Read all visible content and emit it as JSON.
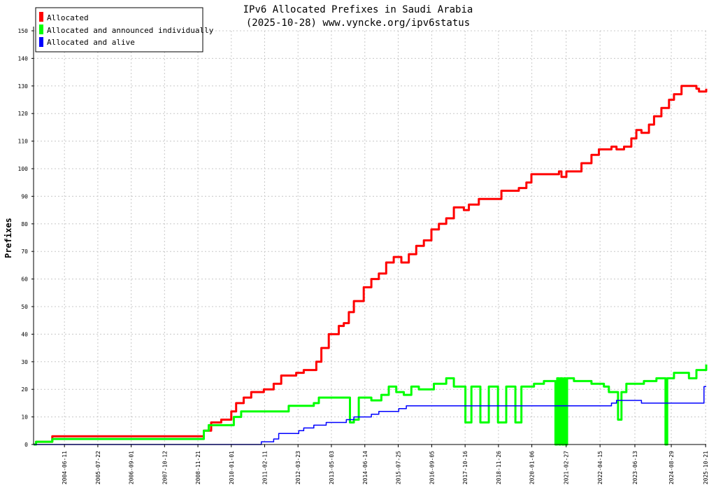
{
  "chart_data": {
    "type": "line",
    "title": "IPv6 Allocated Prefixes in Saudi Arabia",
    "subtitle": "(2025-10-28) www.vyncke.org/ipv6status",
    "ylabel": "Prefixes",
    "xlabel": "",
    "ylim": [
      0,
      150
    ],
    "yticks": [
      0,
      10,
      20,
      30,
      40,
      50,
      60,
      70,
      80,
      90,
      100,
      110,
      120,
      130,
      140,
      150
    ],
    "xlim": [
      "2003-06-01",
      "2025-10-28"
    ],
    "xticks": [
      "2004-06-11",
      "2005-07-22",
      "2006-09-01",
      "2007-10-12",
      "2008-11-21",
      "2010-01-01",
      "2011-02-11",
      "2012-03-23",
      "2013-05-03",
      "2014-06-14",
      "2015-07-25",
      "2016-09-05",
      "2017-10-16",
      "2018-11-26",
      "2020-01-06",
      "2021-02-27",
      "2022-04-15",
      "2023-06-13",
      "2024-08-29",
      "2025-10-21"
    ],
    "grid": true,
    "legend_position": "top-left",
    "series": [
      {
        "name": "Allocated",
        "color": "#ff0000",
        "points": [
          [
            "2003-06-01",
            0
          ],
          [
            "2003-07-01",
            1
          ],
          [
            "2004-01-15",
            3
          ],
          [
            "2008-12-15",
            3
          ],
          [
            "2009-02-01",
            5
          ],
          [
            "2009-05-01",
            8
          ],
          [
            "2009-09-01",
            9
          ],
          [
            "2010-01-01",
            12
          ],
          [
            "2010-03-01",
            15
          ],
          [
            "2010-06-01",
            17
          ],
          [
            "2010-09-01",
            19
          ],
          [
            "2011-02-01",
            20
          ],
          [
            "2011-06-01",
            22
          ],
          [
            "2011-09-01",
            25
          ],
          [
            "2012-03-01",
            26
          ],
          [
            "2012-06-01",
            27
          ],
          [
            "2012-11-01",
            30
          ],
          [
            "2013-01-01",
            35
          ],
          [
            "2013-04-01",
            40
          ],
          [
            "2013-08-01",
            43
          ],
          [
            "2013-10-01",
            44
          ],
          [
            "2013-12-01",
            48
          ],
          [
            "2014-02-01",
            52
          ],
          [
            "2014-06-01",
            57
          ],
          [
            "2014-09-01",
            60
          ],
          [
            "2014-12-01",
            62
          ],
          [
            "2015-03-01",
            66
          ],
          [
            "2015-06-01",
            68
          ],
          [
            "2015-09-01",
            66
          ],
          [
            "2015-12-01",
            69
          ],
          [
            "2016-03-01",
            72
          ],
          [
            "2016-06-01",
            74
          ],
          [
            "2016-09-01",
            78
          ],
          [
            "2016-12-01",
            80
          ],
          [
            "2017-03-01",
            82
          ],
          [
            "2017-06-01",
            86
          ],
          [
            "2017-10-01",
            85
          ],
          [
            "2017-12-01",
            87
          ],
          [
            "2018-04-01",
            89
          ],
          [
            "2018-11-01",
            89
          ],
          [
            "2019-01-01",
            92
          ],
          [
            "2019-08-01",
            93
          ],
          [
            "2019-11-01",
            95
          ],
          [
            "2020-01-01",
            98
          ],
          [
            "2020-12-01",
            99
          ],
          [
            "2021-01-01",
            97
          ],
          [
            "2021-03-01",
            99
          ],
          [
            "2021-09-01",
            102
          ],
          [
            "2022-01-01",
            105
          ],
          [
            "2022-04-01",
            107
          ],
          [
            "2022-09-01",
            108
          ],
          [
            "2022-11-01",
            107
          ],
          [
            "2023-02-01",
            108
          ],
          [
            "2023-05-01",
            111
          ],
          [
            "2023-07-01",
            114
          ],
          [
            "2023-09-01",
            113
          ],
          [
            "2023-12-01",
            116
          ],
          [
            "2024-02-01",
            119
          ],
          [
            "2024-05-01",
            122
          ],
          [
            "2024-08-01",
            125
          ],
          [
            "2024-10-01",
            127
          ],
          [
            "2025-01-01",
            130
          ],
          [
            "2025-07-01",
            129
          ],
          [
            "2025-08-01",
            128
          ],
          [
            "2025-10-28",
            129
          ]
        ]
      },
      {
        "name": "Allocated and announced individually",
        "color": "#00ff00",
        "points": [
          [
            "2003-06-01",
            0
          ],
          [
            "2003-07-01",
            1
          ],
          [
            "2004-01-15",
            2
          ],
          [
            "2008-12-15",
            2
          ],
          [
            "2009-02-01",
            5
          ],
          [
            "2009-04-01",
            7
          ],
          [
            "2009-12-01",
            7
          ],
          [
            "2010-02-01",
            10
          ],
          [
            "2010-05-01",
            12
          ],
          [
            "2011-10-01",
            12
          ],
          [
            "2011-12-01",
            14
          ],
          [
            "2012-10-01",
            15
          ],
          [
            "2012-12-01",
            17
          ],
          [
            "2013-12-01",
            17
          ],
          [
            "2013-12-15",
            8
          ],
          [
            "2014-02-01",
            9
          ],
          [
            "2014-04-01",
            17
          ],
          [
            "2014-09-01",
            16
          ],
          [
            "2015-01-01",
            18
          ],
          [
            "2015-04-01",
            21
          ],
          [
            "2015-07-01",
            19
          ],
          [
            "2015-10-01",
            18
          ],
          [
            "2016-01-01",
            21
          ],
          [
            "2016-04-01",
            20
          ],
          [
            "2016-10-01",
            22
          ],
          [
            "2017-03-01",
            24
          ],
          [
            "2017-06-01",
            21
          ],
          [
            "2017-10-01",
            21
          ],
          [
            "2017-10-20",
            8
          ],
          [
            "2018-01-01",
            21
          ],
          [
            "2018-04-01",
            21
          ],
          [
            "2018-04-20",
            8
          ],
          [
            "2018-08-01",
            21
          ],
          [
            "2018-11-01",
            21
          ],
          [
            "2018-11-20",
            8
          ],
          [
            "2019-03-01",
            21
          ],
          [
            "2019-06-01",
            21
          ],
          [
            "2019-06-20",
            8
          ],
          [
            "2019-09-01",
            21
          ],
          [
            "2020-01-01",
            21
          ],
          [
            "2020-02-01",
            22
          ],
          [
            "2020-06-01",
            23
          ],
          [
            "2020-10-01",
            23
          ],
          [
            "2020-10-20",
            0
          ],
          [
            "2020-11-10",
            24
          ],
          [
            "2020-12-01",
            0
          ],
          [
            "2020-12-20",
            24
          ],
          [
            "2021-01-10",
            0
          ],
          [
            "2021-02-01",
            24
          ],
          [
            "2021-02-20",
            0
          ],
          [
            "2021-03-10",
            24
          ],
          [
            "2021-06-01",
            23
          ],
          [
            "2022-01-01",
            22
          ],
          [
            "2022-06-01",
            21
          ],
          [
            "2022-08-01",
            19
          ],
          [
            "2022-11-01",
            19
          ],
          [
            "2022-11-20",
            9
          ],
          [
            "2023-01-01",
            19
          ],
          [
            "2023-03-01",
            22
          ],
          [
            "2023-07-01",
            22
          ],
          [
            "2023-10-01",
            23
          ],
          [
            "2024-03-01",
            24
          ],
          [
            "2024-06-01",
            24
          ],
          [
            "2024-06-20",
            0
          ],
          [
            "2024-07-10",
            24
          ],
          [
            "2024-10-01",
            26
          ],
          [
            "2025-04-01",
            24
          ],
          [
            "2025-07-01",
            27
          ],
          [
            "2025-10-28",
            29
          ]
        ]
      },
      {
        "name": "Allocated and alive",
        "color": "#0000ff",
        "points": [
          [
            "2003-06-01",
            0
          ],
          [
            "2010-12-01",
            0
          ],
          [
            "2011-01-01",
            1
          ],
          [
            "2011-06-01",
            2
          ],
          [
            "2011-08-01",
            4
          ],
          [
            "2012-04-01",
            5
          ],
          [
            "2012-06-01",
            6
          ],
          [
            "2012-10-01",
            7
          ],
          [
            "2013-03-01",
            8
          ],
          [
            "2013-11-01",
            9
          ],
          [
            "2014-02-01",
            10
          ],
          [
            "2014-09-01",
            11
          ],
          [
            "2014-12-01",
            12
          ],
          [
            "2015-08-01",
            13
          ],
          [
            "2015-11-01",
            14
          ],
          [
            "2021-01-01",
            14
          ],
          [
            "2022-06-01",
            14
          ],
          [
            "2022-09-01",
            15
          ],
          [
            "2022-11-01",
            16
          ],
          [
            "2023-09-01",
            15
          ],
          [
            "2025-09-01",
            15
          ],
          [
            "2025-10-01",
            21
          ],
          [
            "2025-10-28",
            21
          ]
        ]
      }
    ]
  }
}
